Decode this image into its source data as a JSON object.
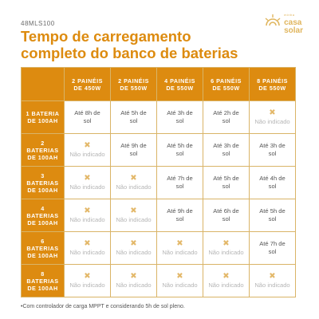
{
  "model": "48MLS100",
  "logo": {
    "small": "minha",
    "big1": "casa",
    "big2": "solar"
  },
  "title": {
    "line1": "Tempo de carregamento",
    "line2": "completo do banco de baterias"
  },
  "table": {
    "columns": [
      {
        "line1": "2 PAINÉIS",
        "line2": "DE 450W"
      },
      {
        "line1": "2 PAINÉIS",
        "line2": "DE 550W"
      },
      {
        "line1": "4 PAINÉIS",
        "line2": "DE 550W"
      },
      {
        "line1": "6 PAINÉIS",
        "line2": "DE 550W"
      },
      {
        "line1": "8 PAINÉIS",
        "line2": "DE 550W"
      }
    ],
    "rows": [
      {
        "label": [
          "1 BATERIA",
          "DE 100AH"
        ],
        "cells": [
          {
            "l1": "Até 8h de",
            "l2": "sol"
          },
          {
            "l1": "Até 5h de",
            "l2": "sol"
          },
          {
            "l1": "Até 3h de",
            "l2": "sol"
          },
          {
            "l1": "Até 2h de",
            "l2": "sol"
          },
          {
            "na": "Não indicado"
          }
        ]
      },
      {
        "label": [
          "2",
          "BATERIAS",
          "DE 100AH"
        ],
        "cells": [
          {
            "na": "Não indicado"
          },
          {
            "l1": "Até 9h de",
            "l2": "sol"
          },
          {
            "l1": "Até 5h de",
            "l2": "sol"
          },
          {
            "l1": "Até 3h de",
            "l2": "sol"
          },
          {
            "l1": "Até 3h de",
            "l2": "sol"
          }
        ]
      },
      {
        "label": [
          "3",
          "BATERIAS",
          "DE 100AH"
        ],
        "cells": [
          {
            "na": "Não indicado"
          },
          {
            "na": "Não indicado"
          },
          {
            "l1": "Até 7h de",
            "l2": "sol"
          },
          {
            "l1": "Até 5h de",
            "l2": "sol"
          },
          {
            "l1": "Até 4h de",
            "l2": "sol"
          }
        ]
      },
      {
        "label": [
          "4",
          "BATERIAS",
          "DE 100AH"
        ],
        "cells": [
          {
            "na": "Não indicado"
          },
          {
            "na": "Não indicado"
          },
          {
            "l1": "Até 9h de",
            "l2": "sol"
          },
          {
            "l1": "Até 6h de",
            "l2": "sol"
          },
          {
            "l1": "Até 5h de",
            "l2": "sol"
          }
        ]
      },
      {
        "label": [
          "6",
          "BATERIAS",
          "DE 100AH"
        ],
        "cells": [
          {
            "na": "Não indicado"
          },
          {
            "na": "Não indicado"
          },
          {
            "na": "Não indicado"
          },
          {
            "na": "Não indicado"
          },
          {
            "l1": "Até 7h de",
            "l2": "sol"
          }
        ]
      },
      {
        "label": [
          "8",
          "BATERIAS",
          "DE 100AH"
        ],
        "cells": [
          {
            "na": "Não indicado"
          },
          {
            "na": "Não indicado"
          },
          {
            "na": "Não indicado"
          },
          {
            "na": "Não indicado"
          },
          {
            "na": "Não indicado"
          }
        ]
      }
    ]
  },
  "footnote": "•Com controlador de carga MPPT e considerando 5h de sol pleno.",
  "colors": {
    "accent": "#dd8b10",
    "title": "#dd8b0f",
    "border": "#d9b467",
    "na_mark": "#e3b86a"
  },
  "icons": {
    "logo": "sun-icon",
    "not_indicated": "x-mark-icon"
  }
}
